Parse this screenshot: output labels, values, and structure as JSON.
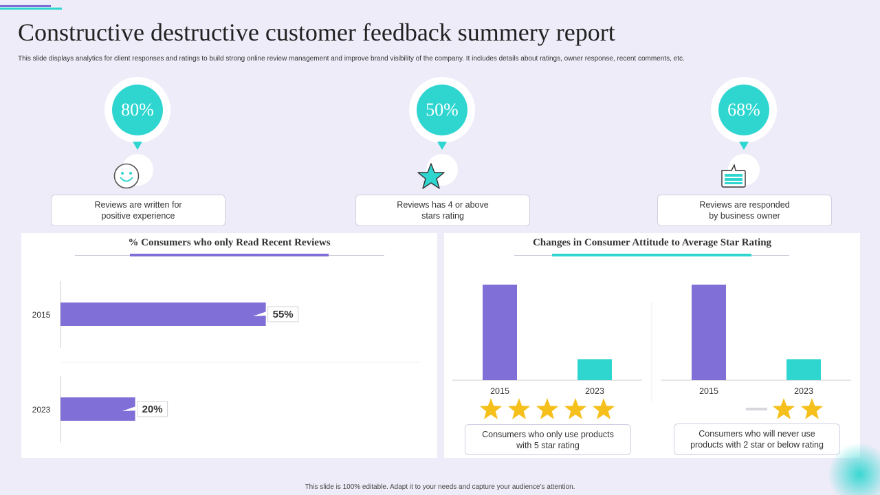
{
  "title": "Constructive destructive customer feedback summery report",
  "subtitle": "This slide displays analytics for client responses and ratings to build strong online review management and improve brand visibility of the company. It includes details about ratings, owner response, recent comments, etc.",
  "kpis": [
    {
      "value": "80%",
      "icon": "smiley-icon",
      "line1": "Reviews are written for",
      "line2": "positive experience"
    },
    {
      "value": "50%",
      "icon": "star-icon",
      "line1": "Reviews has 4 or above",
      "line2": "stars rating"
    },
    {
      "value": "68%",
      "icon": "chat-bubble-icon",
      "line1": "Reviews are responded",
      "line2": "by business owner"
    }
  ],
  "colors": {
    "purple": "#7f6fd6",
    "teal": "#2fd6d0",
    "star": "#f5c01c",
    "background": "#eeecf8"
  },
  "chart_data": [
    {
      "type": "bar",
      "orientation": "horizontal",
      "title": "% Consumers who only Read Recent Reviews",
      "categories": [
        "2015",
        "2023"
      ],
      "values": [
        55,
        20
      ],
      "value_labels": [
        "55%",
        "20%"
      ],
      "color": "#7f6fd6",
      "grid": false
    },
    {
      "type": "bar",
      "title": "Changes in Consumer Attitude to Average Star Rating",
      "panels": [
        {
          "categories": [
            "2015",
            "2023"
          ],
          "values": [
            100,
            22
          ],
          "colors": [
            "#7f6fd6",
            "#2fd6d0"
          ],
          "stars": 5,
          "caption_line1": "Consumers who only use products",
          "caption_line2": "with 5 star rating"
        },
        {
          "categories": [
            "2015",
            "2023"
          ],
          "values": [
            100,
            22
          ],
          "colors": [
            "#7f6fd6",
            "#2fd6d0"
          ],
          "stars": 2,
          "caption_line1": "Consumers who will never use",
          "caption_line2": "products with 2 star or below rating"
        }
      ]
    }
  ],
  "footer": "This slide is 100% editable. Adapt it to your needs and capture your audience’s attention."
}
